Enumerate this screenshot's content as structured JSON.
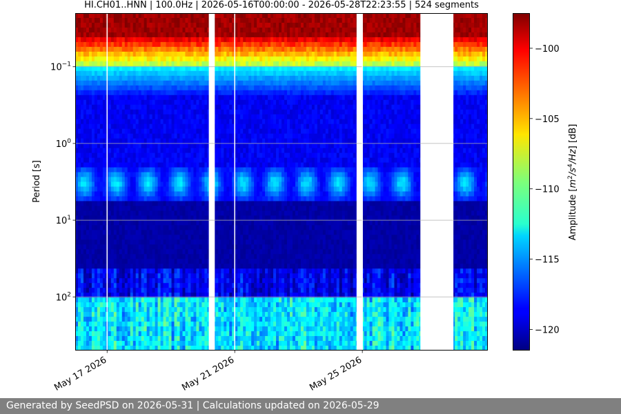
{
  "chart_data": {
    "type": "heatmap",
    "title": "HI.CH01..HNN | 100.0Hz | 2026-05-16T00:00:00 - 2026-05-28T22:23:55 | 524 segments",
    "ylabel": "Period [s]",
    "xlabel": "",
    "y_scale": "log",
    "y_inverted": true,
    "ylim": [
      0.02,
      500
    ],
    "y_ticks": [
      {
        "value": 0.1,
        "base": "10",
        "exp": "−1"
      },
      {
        "value": 1,
        "base": "10",
        "exp": "0"
      },
      {
        "value": 10,
        "base": "10",
        "exp": "1"
      },
      {
        "value": 100,
        "base": "10",
        "exp": "2"
      }
    ],
    "xlim": [
      "2026-05-16T00:00:00",
      "2026-05-28T22:23:55"
    ],
    "x_ticks": [
      {
        "date": "2026-05-17",
        "label": "May 17 2026"
      },
      {
        "date": "2026-05-21",
        "label": "May 21 2026"
      },
      {
        "date": "2026-05-25",
        "label": "May 25 2026"
      }
    ],
    "data_gaps": [
      [
        "2026-05-20T04:30:00",
        "2026-05-20T09:00:00"
      ],
      [
        "2026-05-24T19:40:00",
        "2026-05-25T00:00:00"
      ],
      [
        "2026-05-26T19:40:00",
        "2026-05-27T20:30:00"
      ]
    ],
    "colorbar": {
      "label": "Amplitude [m²/s⁴/Hz] [dB]",
      "label_base": "Amplitude [",
      "label_unit_suffix": "] [dB]",
      "vmin": -121.5,
      "vmax": -97.5,
      "ticks": [
        -100,
        -105,
        -110,
        -115,
        -120
      ],
      "tick_labels": [
        "−100",
        "−105",
        "−110",
        "−115",
        "−120"
      ],
      "colormap": "jet"
    },
    "grid": true,
    "legend": "none"
  },
  "footer": {
    "text": "Generated by SeedPSD on 2026-05-31 | Calculations updated on 2026-05-29"
  }
}
